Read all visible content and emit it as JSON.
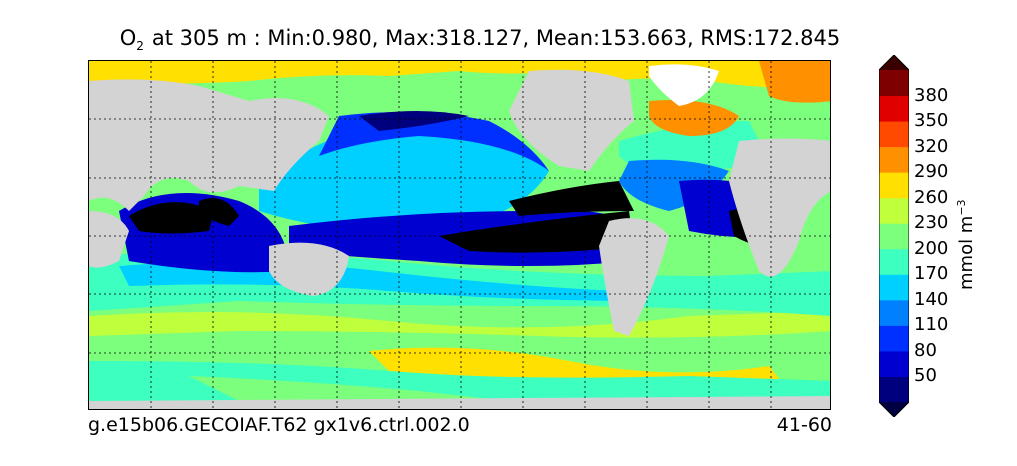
{
  "title": {
    "symbol": "O",
    "subscript": "2",
    "text": "at 305 m : Min:0.980, Max:318.127, Mean:153.663, RMS:172.845"
  },
  "footer": {
    "case_name": "g.e15b06.GECOIAF.T62 gx1v6.ctrl.002.0",
    "years": "41-60"
  },
  "colorbar": {
    "ticks": [
      "50",
      "80",
      "110",
      "140",
      "170",
      "200",
      "230",
      "260",
      "290",
      "320",
      "350",
      "380"
    ],
    "units_main": "mmol m",
    "units_exp": "−3",
    "colors": [
      "#00007f",
      "#0000d0",
      "#0030ff",
      "#0080ff",
      "#00d0ff",
      "#3cffc0",
      "#7cff7c",
      "#c0ff3c",
      "#ffe000",
      "#ff9000",
      "#ff4a00",
      "#e00000",
      "#7f0000"
    ]
  },
  "map": {
    "land_color": "#d3d3d3",
    "ice_color": "#ffffff",
    "graticule": "dashed"
  }
}
